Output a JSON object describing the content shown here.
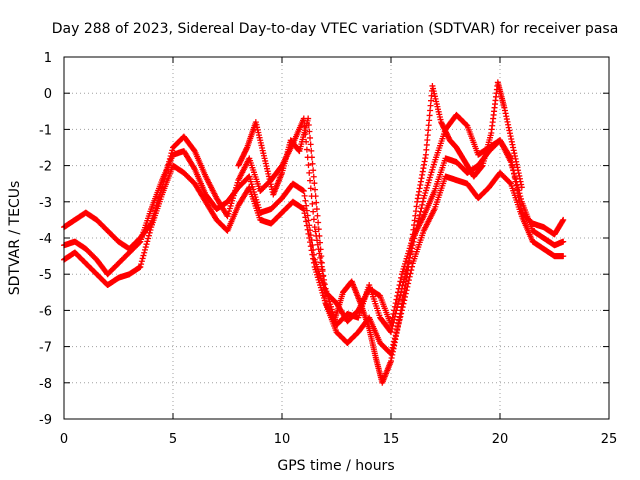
{
  "chart_data": {
    "type": "scatter",
    "title": "Day 288 of 2023, Sidereal Day-to-day VTEC variation (SDTVAR) for receiver pasa",
    "xlabel": "GPS time / hours",
    "ylabel": "SDTVAR / TECUs",
    "xlim": [
      0,
      25
    ],
    "ylim": [
      -9,
      1
    ],
    "xticks": [
      0,
      5,
      10,
      15,
      20,
      25
    ],
    "yticks": [
      1,
      0,
      -1,
      -2,
      -3,
      -4,
      -5,
      -6,
      -7,
      -8,
      -9
    ],
    "grid": true,
    "marker": "+",
    "color": "#ff0000",
    "series": [
      {
        "x": [
          0.0,
          0.5,
          1.0,
          1.5,
          2.0,
          2.5,
          3.0,
          3.5,
          4.0,
          4.5,
          5.0,
          5.5,
          6.0,
          6.5,
          7.0,
          7.5,
          8.0,
          8.5,
          9.0,
          9.5,
          10.0,
          10.5,
          11.0,
          11.5,
          12.0,
          12.5,
          13.0,
          13.5,
          14.0,
          14.5,
          15.0,
          15.5,
          16.0,
          16.5,
          17.0,
          17.5,
          18.0,
          18.5,
          19.0,
          19.5,
          20.0,
          20.5,
          21.0,
          21.5,
          22.0,
          22.5,
          22.9
        ],
        "y": [
          -3.7,
          -3.5,
          -3.3,
          -3.5,
          -3.8,
          -4.1,
          -4.3,
          -4.0,
          -3.6,
          -2.6,
          -1.5,
          -1.2,
          -1.6,
          -2.3,
          -2.9,
          -3.4,
          -2.4,
          -1.8,
          -2.7,
          -2.4,
          -2.0,
          -1.4,
          -0.7,
          -3.7,
          -5.4,
          -6.4,
          -6.1,
          -6.2,
          -5.3,
          -6.2,
          -6.6,
          -5.4,
          -4.2,
          -2.9,
          -1.9,
          -1.0,
          -0.6,
          -0.9,
          -1.7,
          -1.5,
          -1.3,
          -1.8,
          -3.3,
          -3.6,
          -3.7,
          -3.9,
          -3.5
        ]
      },
      {
        "x": [
          0.0,
          0.5,
          1.0,
          1.5,
          2.0,
          2.5,
          3.0,
          3.5,
          4.0,
          4.5,
          5.0,
          5.5,
          6.0,
          6.5,
          7.0,
          7.5,
          8.0,
          8.5,
          9.0,
          9.5,
          10.0,
          10.5,
          11.0,
          11.5,
          12.0,
          12.5,
          13.0,
          13.5,
          14.0,
          14.5,
          15.0,
          15.5,
          16.0,
          16.5,
          17.0,
          17.5,
          18.0,
          18.5,
          19.0,
          19.5,
          20.0,
          20.5,
          21.0,
          21.5,
          22.0,
          22.5,
          22.9
        ],
        "y": [
          -4.2,
          -4.1,
          -4.3,
          -4.6,
          -5.0,
          -4.7,
          -4.4,
          -4.1,
          -3.2,
          -2.4,
          -1.7,
          -1.6,
          -2.1,
          -2.8,
          -3.2,
          -3.0,
          -2.6,
          -2.3,
          -3.3,
          -3.2,
          -2.9,
          -2.5,
          -2.7,
          -4.6,
          -5.5,
          -5.8,
          -6.3,
          -6.0,
          -5.4,
          -5.6,
          -6.4,
          -5.0,
          -4.0,
          -3.4,
          -2.7,
          -1.8,
          -1.9,
          -2.2,
          -2.0,
          -1.6,
          -1.3,
          -1.9,
          -3.0,
          -3.8,
          -4.0,
          -4.2,
          -4.1
        ]
      },
      {
        "x": [
          0.0,
          0.5,
          1.0,
          1.5,
          2.0,
          2.5,
          3.0,
          3.5,
          4.0,
          4.5,
          5.0,
          5.5,
          6.0,
          6.5,
          7.0,
          7.5,
          8.0,
          8.5,
          9.0,
          9.5,
          10.0,
          10.5,
          11.0,
          11.5,
          12.0,
          12.5,
          13.0,
          13.5,
          14.0,
          14.5,
          15.0,
          15.5,
          16.0,
          16.5,
          17.0,
          17.5,
          18.0,
          18.5,
          19.0,
          19.5,
          20.0,
          20.5,
          21.0,
          21.5,
          22.0,
          22.5,
          22.9
        ],
        "y": [
          -4.6,
          -4.4,
          -4.7,
          -5.0,
          -5.3,
          -5.1,
          -5.0,
          -4.8,
          -3.7,
          -2.8,
          -2.0,
          -2.2,
          -2.5,
          -3.0,
          -3.5,
          -3.8,
          -3.1,
          -2.6,
          -3.5,
          -3.6,
          -3.3,
          -3.0,
          -3.2,
          -4.8,
          -5.8,
          -6.6,
          -6.9,
          -6.6,
          -6.2,
          -6.9,
          -7.2,
          -6.0,
          -4.7,
          -3.8,
          -3.2,
          -2.3,
          -2.4,
          -2.5,
          -2.9,
          -2.6,
          -2.2,
          -2.5,
          -3.4,
          -4.1,
          -4.3,
          -4.5,
          -4.5
        ]
      },
      {
        "x": [
          8.0,
          8.4,
          8.8,
          9.2,
          9.6,
          10.0,
          10.4,
          10.8,
          11.2,
          11.6,
          12.0,
          12.4,
          12.8,
          13.2,
          13.6,
          14.0,
          14.3,
          14.6,
          15.0,
          15.4,
          15.8,
          16.2,
          16.6,
          16.9,
          17.3,
          17.7,
          18.0,
          18.4,
          18.8,
          19.2,
          19.6,
          19.9,
          20.2,
          20.6,
          21.0
        ],
        "y": [
          -2.0,
          -1.5,
          -0.8,
          -1.8,
          -2.8,
          -2.2,
          -1.3,
          -1.6,
          -0.7,
          -3.2,
          -5.8,
          -6.3,
          -5.5,
          -5.2,
          -5.8,
          -6.5,
          -7.3,
          -8.0,
          -7.4,
          -6.2,
          -4.8,
          -3.0,
          -1.7,
          0.2,
          -0.8,
          -1.3,
          -1.5,
          -1.9,
          -2.3,
          -2.0,
          -1.1,
          0.3,
          -0.4,
          -1.5,
          -2.6
        ]
      }
    ]
  }
}
